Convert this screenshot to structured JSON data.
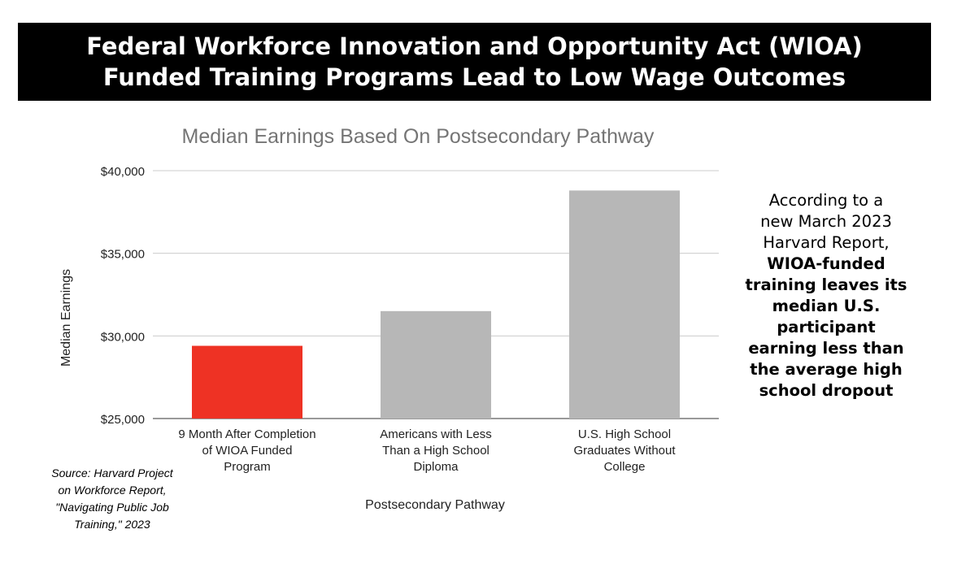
{
  "banner": {
    "line1": "Federal Workforce Innovation and Opportunity Act (WIOA)",
    "line2": "Funded Training Programs Lead to Low Wage Outcomes"
  },
  "chart_data": {
    "type": "bar",
    "title": "Median Earnings Based On Postsecondary Pathway",
    "xlabel": "Postsecondary Pathway",
    "ylabel": "Median Earnings",
    "categories": [
      [
        "9 Month After Completion",
        "of WIOA Funded",
        "Program"
      ],
      [
        "Americans with Less",
        "Than a High School",
        "Diploma"
      ],
      [
        "U.S. High School",
        "Graduates Without",
        "College"
      ]
    ],
    "values": [
      29400,
      31500,
      38800
    ],
    "ylim": [
      25000,
      40000
    ],
    "yticks": [
      25000,
      30000,
      35000,
      40000
    ],
    "ytick_labels": [
      "$25,000",
      "$30,000",
      "$35,000",
      "$40,000"
    ],
    "bar_colors": [
      "#ee3224",
      "#b7b7b7",
      "#b7b7b7"
    ],
    "grid": true,
    "legend": "none"
  },
  "side_note": {
    "normal_lines": [
      "According to a",
      "new March 2023",
      "Harvard Report,"
    ],
    "bold_lines": [
      "WIOA-funded",
      "training leaves its",
      "median U.S.",
      "participant",
      "earning less than",
      "the average high",
      "school dropout"
    ]
  },
  "source": {
    "lines": [
      "Source: Harvard Project",
      "on Workforce Report,",
      "\"Navigating Public Job",
      "Training,\" 2023"
    ]
  }
}
